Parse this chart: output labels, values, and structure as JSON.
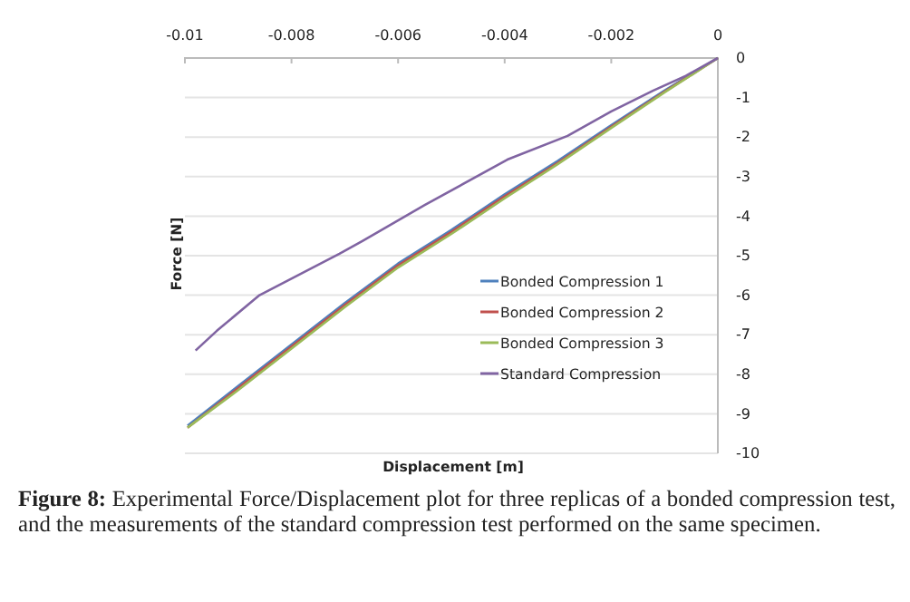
{
  "chart_data": {
    "type": "line",
    "xlabel": "Displacement [m]",
    "ylabel": "Force [N]",
    "xlim": [
      -0.01,
      0
    ],
    "xticks": [
      -0.01,
      -0.008,
      -0.006,
      -0.004,
      -0.002,
      0
    ],
    "ylim": [
      -10,
      0
    ],
    "yticks": [
      -10,
      -9,
      -8,
      -7,
      -6,
      -5,
      -4,
      -3,
      -2,
      -1,
      0
    ],
    "grid": "y",
    "legend": "right",
    "line_style": "solid",
    "marker": "none",
    "series": [
      {
        "name": "Bonded Compression 1",
        "color": "#4f81bd",
        "x": [
          0,
          -0.001,
          -0.002,
          -0.003,
          -0.004,
          -0.005,
          -0.006,
          -0.007,
          -0.008,
          -0.009,
          -0.00995
        ],
        "values": [
          0,
          -0.82,
          -1.7,
          -2.6,
          -3.45,
          -4.35,
          -5.2,
          -6.2,
          -7.25,
          -8.3,
          -9.3
        ]
      },
      {
        "name": "Bonded Compression 2",
        "color": "#c0504d",
        "x": [
          0,
          -0.001,
          -0.002,
          -0.003,
          -0.004,
          -0.005,
          -0.006,
          -0.007,
          -0.008,
          -0.009,
          -0.00995
        ],
        "values": [
          0,
          -0.85,
          -1.74,
          -2.65,
          -3.5,
          -4.4,
          -5.25,
          -6.25,
          -7.3,
          -8.35,
          -9.35
        ]
      },
      {
        "name": "Bonded Compression 3",
        "color": "#9bbb59",
        "x": [
          0,
          -0.001,
          -0.002,
          -0.003,
          -0.004,
          -0.005,
          -0.006,
          -0.007,
          -0.008,
          -0.009,
          -0.00995
        ],
        "values": [
          0,
          -0.87,
          -1.77,
          -2.68,
          -3.55,
          -4.45,
          -5.3,
          -6.3,
          -7.35,
          -8.4,
          -9.35
        ]
      },
      {
        "name": "Standard Compression",
        "color": "#8064a2",
        "x": [
          0,
          -0.0006,
          -0.00122,
          -0.002,
          -0.00282,
          -0.00395,
          -0.0055,
          -0.00667,
          -0.0071,
          -0.0086,
          -0.0094,
          -0.0098
        ],
        "values": [
          0,
          -0.45,
          -0.83,
          -1.35,
          -1.97,
          -2.57,
          -3.72,
          -4.63,
          -4.95,
          -6.0,
          -6.9,
          -7.4
        ]
      }
    ],
    "annotations": [
      "Figure 8: Experimental Force/Displacement plot for three replicas of a bonded compression test, and the measurements of the standard compression test performed on the same specimen."
    ]
  }
}
